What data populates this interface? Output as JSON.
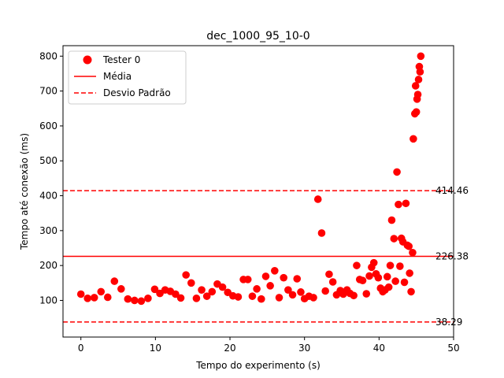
{
  "chart_data": {
    "type": "scatter",
    "title": "dec_1000_95_10-0",
    "xlabel": "Tempo do experimento (s)",
    "ylabel": "Tempo até conexão (ms)",
    "xlim": [
      -2.4,
      50.0
    ],
    "ylim": [
      -5,
      830
    ],
    "xticks": [
      0,
      10,
      20,
      30,
      40,
      50
    ],
    "yticks": [
      100,
      200,
      300,
      400,
      500,
      600,
      700,
      800
    ],
    "grid": false,
    "legend_position": "top-left",
    "colors": {
      "series": "#ff0000",
      "mean": "#ff0000",
      "std": "#ff0000"
    },
    "legend": [
      {
        "label": "Tester 0",
        "kind": "marker"
      },
      {
        "label": "Média",
        "kind": "solid-line"
      },
      {
        "label": "Desvio Padrão",
        "kind": "dashed-line"
      }
    ],
    "reference_lines": [
      {
        "name": "upper",
        "value": 414.46,
        "label": "414.46",
        "style": "dashed"
      },
      {
        "name": "mean",
        "value": 226.38,
        "label": "226.38",
        "style": "solid"
      },
      {
        "name": "lower",
        "value": 38.29,
        "label": "38.29",
        "style": "dashed"
      }
    ],
    "series": [
      {
        "name": "Tester 0",
        "points": [
          [
            0.0,
            118
          ],
          [
            0.9,
            106
          ],
          [
            1.8,
            108
          ],
          [
            2.7,
            125
          ],
          [
            3.6,
            109
          ],
          [
            4.5,
            155
          ],
          [
            5.4,
            133
          ],
          [
            6.3,
            104
          ],
          [
            7.2,
            100
          ],
          [
            8.1,
            98
          ],
          [
            9.0,
            106
          ],
          [
            9.9,
            132
          ],
          [
            10.6,
            120
          ],
          [
            11.3,
            130
          ],
          [
            12.0,
            126
          ],
          [
            12.7,
            118
          ],
          [
            13.4,
            107
          ],
          [
            14.1,
            173
          ],
          [
            14.8,
            150
          ],
          [
            15.5,
            106
          ],
          [
            16.2,
            130
          ],
          [
            16.9,
            112
          ],
          [
            17.6,
            125
          ],
          [
            18.3,
            147
          ],
          [
            19.0,
            138
          ],
          [
            19.7,
            123
          ],
          [
            20.4,
            113
          ],
          [
            21.1,
            110
          ],
          [
            21.8,
            160
          ],
          [
            22.4,
            160
          ],
          [
            23.0,
            112
          ],
          [
            23.6,
            133
          ],
          [
            24.2,
            104
          ],
          [
            24.8,
            169
          ],
          [
            25.4,
            142
          ],
          [
            26.0,
            185
          ],
          [
            26.6,
            108
          ],
          [
            27.2,
            165
          ],
          [
            27.8,
            130
          ],
          [
            28.4,
            116
          ],
          [
            29.0,
            162
          ],
          [
            29.5,
            124
          ],
          [
            30.0,
            105
          ],
          [
            30.6,
            112
          ],
          [
            31.2,
            108
          ],
          [
            31.8,
            390
          ],
          [
            32.3,
            293
          ],
          [
            32.8,
            127
          ],
          [
            33.3,
            175
          ],
          [
            33.8,
            153
          ],
          [
            34.3,
            116
          ],
          [
            34.8,
            128
          ],
          [
            35.2,
            118
          ],
          [
            35.7,
            130
          ],
          [
            36.1,
            120
          ],
          [
            36.6,
            114
          ],
          [
            37.0,
            200
          ],
          [
            37.4,
            160
          ],
          [
            37.8,
            157
          ],
          [
            38.3,
            119
          ],
          [
            38.7,
            170
          ],
          [
            39.0,
            195
          ],
          [
            39.3,
            208
          ],
          [
            39.6,
            176
          ],
          [
            39.9,
            165
          ],
          [
            40.2,
            135
          ],
          [
            40.5,
            125
          ],
          [
            40.8,
            130
          ],
          [
            41.1,
            168
          ],
          [
            41.3,
            138
          ],
          [
            41.5,
            200
          ],
          [
            41.7,
            330
          ],
          [
            42.0,
            277
          ],
          [
            42.2,
            155
          ],
          [
            42.4,
            468
          ],
          [
            42.6,
            375
          ],
          [
            42.8,
            198
          ],
          [
            43.0,
            278
          ],
          [
            43.2,
            268
          ],
          [
            43.4,
            152
          ],
          [
            43.6,
            378
          ],
          [
            43.8,
            258
          ],
          [
            44.0,
            255
          ],
          [
            44.1,
            178
          ],
          [
            44.3,
            125
          ],
          [
            44.5,
            237
          ],
          [
            44.6,
            563
          ],
          [
            44.8,
            635
          ],
          [
            44.9,
            715
          ],
          [
            45.0,
            640
          ],
          [
            45.1,
            677
          ],
          [
            45.2,
            690
          ],
          [
            45.3,
            733
          ],
          [
            45.4,
            770
          ],
          [
            45.5,
            755
          ],
          [
            45.6,
            800
          ]
        ]
      }
    ]
  }
}
